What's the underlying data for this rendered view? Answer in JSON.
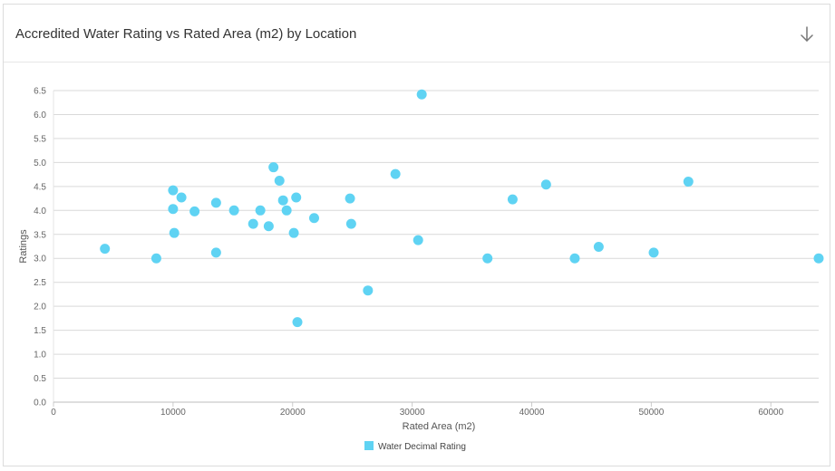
{
  "header": {
    "title": "Accredited Water Rating vs Rated Area (m2) by Location",
    "download_icon": "arrow-down-icon"
  },
  "chart_data": {
    "type": "scatter",
    "title": "Accredited Water Rating vs Rated Area (m2) by Location",
    "xlabel": "Rated Area (m2)",
    "ylabel": "Ratings",
    "xlim": [
      0,
      64000
    ],
    "ylim": [
      0,
      6.5
    ],
    "x_ticks": [
      "0",
      "10000",
      "20000",
      "30000",
      "40000",
      "50000",
      "60000"
    ],
    "y_ticks": [
      "0.0",
      "0.5",
      "1.0",
      "1.5",
      "2.0",
      "2.5",
      "3.0",
      "3.5",
      "4.0",
      "4.5",
      "5.0",
      "5.5",
      "6.0",
      "6.5"
    ],
    "grid": true,
    "legend_position": "bottom",
    "series": [
      {
        "name": "Water Decimal Rating",
        "color": "#5fd3f3",
        "points": [
          {
            "x": 4300,
            "y": 3.2
          },
          {
            "x": 8600,
            "y": 3.0
          },
          {
            "x": 10000,
            "y": 4.42
          },
          {
            "x": 10000,
            "y": 4.03
          },
          {
            "x": 10100,
            "y": 3.53
          },
          {
            "x": 10700,
            "y": 4.27
          },
          {
            "x": 11800,
            "y": 3.98
          },
          {
            "x": 13600,
            "y": 4.16
          },
          {
            "x": 13600,
            "y": 3.12
          },
          {
            "x": 15100,
            "y": 4.0
          },
          {
            "x": 16700,
            "y": 3.72
          },
          {
            "x": 17300,
            "y": 4.0
          },
          {
            "x": 18000,
            "y": 3.67
          },
          {
            "x": 18400,
            "y": 4.9
          },
          {
            "x": 18900,
            "y": 4.62
          },
          {
            "x": 19200,
            "y": 4.21
          },
          {
            "x": 19500,
            "y": 4.0
          },
          {
            "x": 20100,
            "y": 3.53
          },
          {
            "x": 20300,
            "y": 4.27
          },
          {
            "x": 20400,
            "y": 1.67
          },
          {
            "x": 21800,
            "y": 3.84
          },
          {
            "x": 24800,
            "y": 4.25
          },
          {
            "x": 24900,
            "y": 3.72
          },
          {
            "x": 26300,
            "y": 2.33
          },
          {
            "x": 28600,
            "y": 4.76
          },
          {
            "x": 30500,
            "y": 3.38
          },
          {
            "x": 30800,
            "y": 6.42
          },
          {
            "x": 36300,
            "y": 3.0
          },
          {
            "x": 38400,
            "y": 4.23
          },
          {
            "x": 41200,
            "y": 4.54
          },
          {
            "x": 43600,
            "y": 3.0
          },
          {
            "x": 45600,
            "y": 3.24
          },
          {
            "x": 50200,
            "y": 3.12
          },
          {
            "x": 53100,
            "y": 4.6
          },
          {
            "x": 64000,
            "y": 3.0
          }
        ]
      }
    ]
  }
}
